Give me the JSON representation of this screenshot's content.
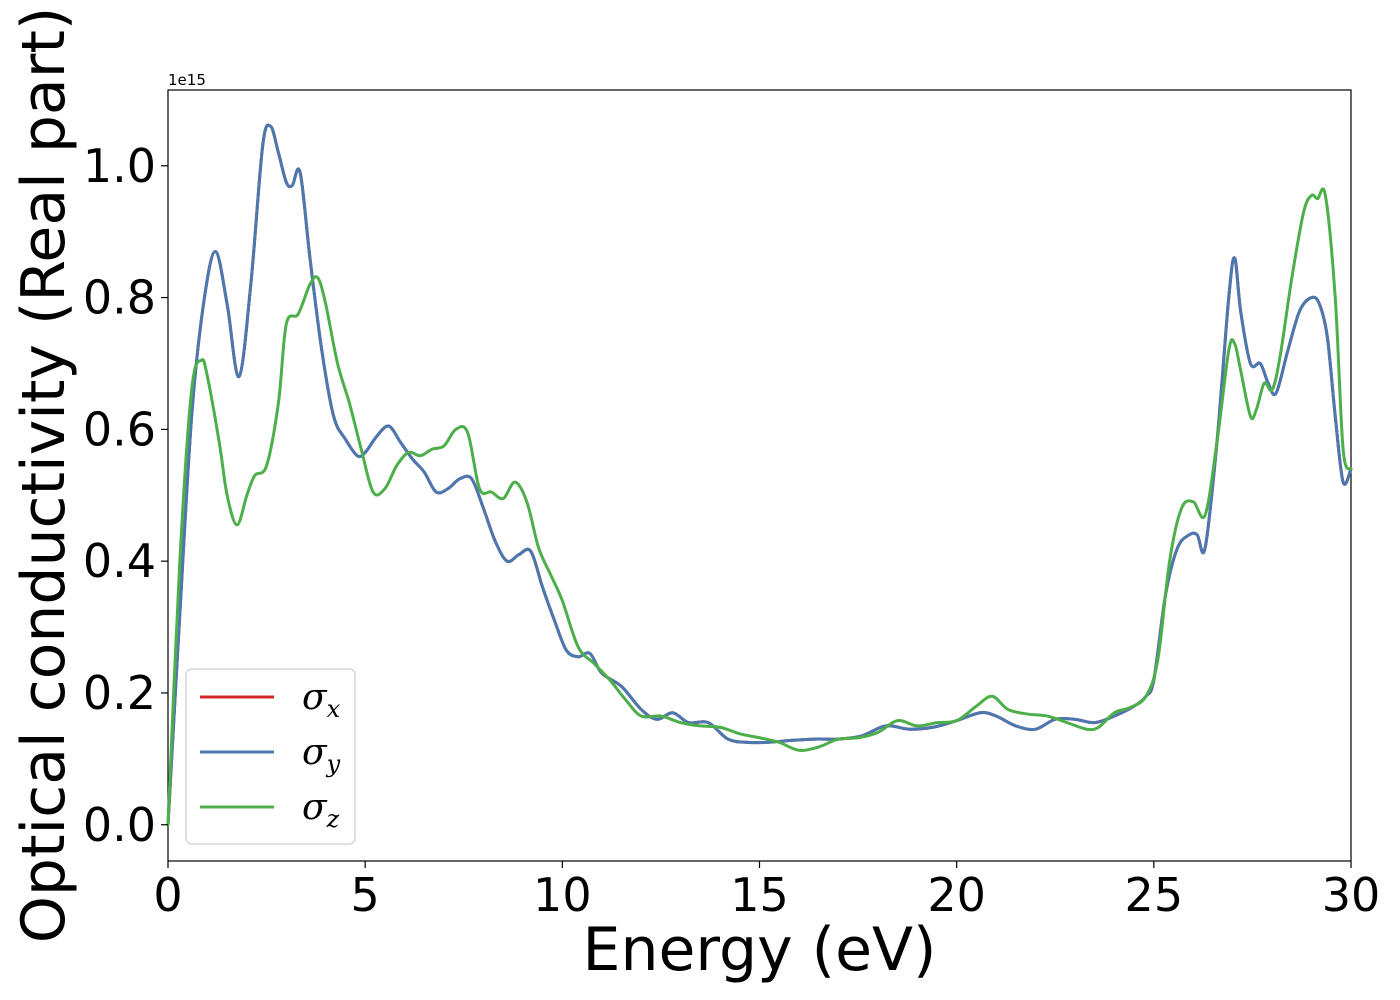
{
  "chart_data": {
    "type": "line",
    "xlabel": "Energy (eV)",
    "ylabel": "Optical conductivity (Real part)",
    "y_offset_text": "1e15",
    "xlim": [
      0,
      30
    ],
    "ylim": [
      -0.055,
      1.115
    ],
    "x_ticks": [
      0,
      5,
      10,
      15,
      20,
      25,
      30
    ],
    "x_tick_labels": [
      "0",
      "5",
      "10",
      "15",
      "20",
      "25",
      "30"
    ],
    "y_ticks": [
      0.0,
      0.2,
      0.4,
      0.6,
      0.8,
      1.0
    ],
    "y_tick_labels": [
      "0.0",
      "0.2",
      "0.4",
      "0.6",
      "0.8",
      "1.0"
    ],
    "grid": false,
    "legend_position": "lower-left",
    "series": [
      {
        "name": "σ_x",
        "symbol": "σ",
        "subscript": "x",
        "color": "#d62728",
        "x": [
          0.0,
          0.3,
          0.6,
          0.9,
          1.2,
          1.5,
          1.8,
          2.1,
          2.4,
          2.6,
          2.8,
          3.0,
          3.15,
          3.35,
          3.6,
          3.9,
          4.2,
          4.5,
          4.8,
          5.0,
          5.3,
          5.6,
          5.9,
          6.2,
          6.5,
          6.8,
          7.1,
          7.4,
          7.7,
          8.0,
          8.3,
          8.6,
          8.9,
          9.2,
          9.5,
          9.8,
          10.1,
          10.4,
          10.7,
          11.0,
          11.5,
          12.0,
          12.4,
          12.8,
          13.2,
          13.7,
          14.2,
          14.7,
          15.2,
          15.8,
          16.4,
          17.0,
          17.6,
          18.2,
          18.8,
          19.4,
          20.0,
          20.6,
          21.0,
          21.5,
          22.0,
          22.5,
          23.0,
          23.5,
          24.0,
          24.5,
          24.8,
          25.0,
          25.3,
          25.6,
          25.9,
          26.1,
          26.3,
          26.6,
          26.9,
          27.05,
          27.2,
          27.45,
          27.7,
          27.9,
          28.1,
          28.4,
          28.7,
          29.0,
          29.2,
          29.4,
          29.6,
          29.8,
          30.0
        ],
        "values": [
          0.0,
          0.32,
          0.62,
          0.79,
          0.87,
          0.79,
          0.68,
          0.82,
          1.03,
          1.06,
          1.02,
          0.975,
          0.97,
          0.99,
          0.86,
          0.72,
          0.62,
          0.585,
          0.56,
          0.565,
          0.59,
          0.605,
          0.58,
          0.555,
          0.535,
          0.505,
          0.51,
          0.525,
          0.525,
          0.48,
          0.43,
          0.4,
          0.41,
          0.415,
          0.36,
          0.31,
          0.265,
          0.255,
          0.26,
          0.23,
          0.21,
          0.175,
          0.16,
          0.17,
          0.155,
          0.155,
          0.13,
          0.125,
          0.125,
          0.128,
          0.13,
          0.13,
          0.135,
          0.15,
          0.145,
          0.148,
          0.158,
          0.17,
          0.165,
          0.15,
          0.145,
          0.16,
          0.16,
          0.155,
          0.165,
          0.18,
          0.195,
          0.22,
          0.35,
          0.42,
          0.44,
          0.44,
          0.42,
          0.58,
          0.8,
          0.86,
          0.78,
          0.7,
          0.7,
          0.67,
          0.655,
          0.72,
          0.78,
          0.8,
          0.79,
          0.74,
          0.62,
          0.52,
          0.54
        ]
      },
      {
        "name": "σ_y",
        "symbol": "σ",
        "subscript": "y",
        "color": "#4a78b0",
        "x": [
          0.0,
          0.3,
          0.6,
          0.9,
          1.2,
          1.5,
          1.8,
          2.1,
          2.4,
          2.6,
          2.8,
          3.0,
          3.15,
          3.35,
          3.6,
          3.9,
          4.2,
          4.5,
          4.8,
          5.0,
          5.3,
          5.6,
          5.9,
          6.2,
          6.5,
          6.8,
          7.1,
          7.4,
          7.7,
          8.0,
          8.3,
          8.6,
          8.9,
          9.2,
          9.5,
          9.8,
          10.1,
          10.4,
          10.7,
          11.0,
          11.5,
          12.0,
          12.4,
          12.8,
          13.2,
          13.7,
          14.2,
          14.7,
          15.2,
          15.8,
          16.4,
          17.0,
          17.6,
          18.2,
          18.8,
          19.4,
          20.0,
          20.6,
          21.0,
          21.5,
          22.0,
          22.5,
          23.0,
          23.5,
          24.0,
          24.5,
          24.8,
          25.0,
          25.3,
          25.6,
          25.9,
          26.1,
          26.3,
          26.6,
          26.9,
          27.05,
          27.2,
          27.45,
          27.7,
          27.9,
          28.1,
          28.4,
          28.7,
          29.0,
          29.2,
          29.4,
          29.6,
          29.8,
          30.0
        ],
        "values": [
          0.0,
          0.32,
          0.62,
          0.79,
          0.87,
          0.79,
          0.68,
          0.82,
          1.03,
          1.06,
          1.02,
          0.975,
          0.97,
          0.99,
          0.86,
          0.72,
          0.62,
          0.585,
          0.56,
          0.565,
          0.59,
          0.605,
          0.58,
          0.555,
          0.535,
          0.505,
          0.51,
          0.525,
          0.525,
          0.48,
          0.43,
          0.4,
          0.41,
          0.415,
          0.36,
          0.31,
          0.265,
          0.255,
          0.26,
          0.23,
          0.21,
          0.175,
          0.16,
          0.17,
          0.155,
          0.155,
          0.13,
          0.125,
          0.125,
          0.128,
          0.13,
          0.13,
          0.135,
          0.15,
          0.145,
          0.148,
          0.158,
          0.17,
          0.165,
          0.15,
          0.145,
          0.16,
          0.16,
          0.155,
          0.165,
          0.18,
          0.195,
          0.22,
          0.35,
          0.42,
          0.44,
          0.44,
          0.42,
          0.58,
          0.8,
          0.86,
          0.78,
          0.7,
          0.7,
          0.67,
          0.655,
          0.72,
          0.78,
          0.8,
          0.79,
          0.74,
          0.62,
          0.52,
          0.54
        ]
      },
      {
        "name": "σ_z",
        "symbol": "σ",
        "subscript": "z",
        "color": "#4daf4a",
        "x": [
          0.0,
          0.3,
          0.6,
          0.85,
          1.0,
          1.3,
          1.5,
          1.75,
          2.0,
          2.2,
          2.5,
          2.8,
          3.0,
          3.3,
          3.6,
          3.8,
          4.0,
          4.3,
          4.6,
          4.9,
          5.2,
          5.5,
          5.8,
          6.1,
          6.4,
          6.7,
          7.0,
          7.3,
          7.6,
          7.9,
          8.2,
          8.5,
          8.8,
          9.1,
          9.4,
          9.7,
          10.0,
          10.4,
          10.8,
          11.2,
          11.6,
          12.0,
          12.5,
          13.0,
          13.5,
          14.0,
          14.5,
          15.0,
          15.5,
          16.0,
          16.5,
          17.0,
          17.5,
          18.0,
          18.5,
          19.0,
          19.5,
          20.0,
          20.5,
          20.9,
          21.3,
          21.8,
          22.3,
          22.8,
          23.3,
          23.6,
          24.0,
          24.4,
          24.8,
          25.1,
          25.4,
          25.7,
          26.0,
          26.3,
          26.6,
          26.9,
          27.05,
          27.2,
          27.45,
          27.6,
          27.8,
          28.0,
          28.2,
          28.5,
          28.8,
          29.0,
          29.15,
          29.35,
          29.6,
          29.8,
          30.0
        ],
        "values": [
          0.0,
          0.4,
          0.66,
          0.705,
          0.68,
          0.58,
          0.5,
          0.455,
          0.5,
          0.53,
          0.545,
          0.64,
          0.76,
          0.775,
          0.82,
          0.83,
          0.79,
          0.7,
          0.64,
          0.57,
          0.505,
          0.51,
          0.545,
          0.565,
          0.56,
          0.57,
          0.575,
          0.6,
          0.595,
          0.51,
          0.505,
          0.495,
          0.52,
          0.49,
          0.42,
          0.38,
          0.34,
          0.27,
          0.245,
          0.22,
          0.19,
          0.165,
          0.165,
          0.155,
          0.15,
          0.148,
          0.138,
          0.132,
          0.125,
          0.113,
          0.118,
          0.13,
          0.132,
          0.14,
          0.158,
          0.15,
          0.155,
          0.158,
          0.18,
          0.195,
          0.175,
          0.168,
          0.165,
          0.155,
          0.145,
          0.148,
          0.17,
          0.178,
          0.195,
          0.25,
          0.4,
          0.48,
          0.49,
          0.47,
          0.58,
          0.72,
          0.73,
          0.69,
          0.62,
          0.63,
          0.67,
          0.66,
          0.71,
          0.83,
          0.93,
          0.955,
          0.95,
          0.955,
          0.8,
          0.57,
          0.54
        ]
      }
    ]
  }
}
